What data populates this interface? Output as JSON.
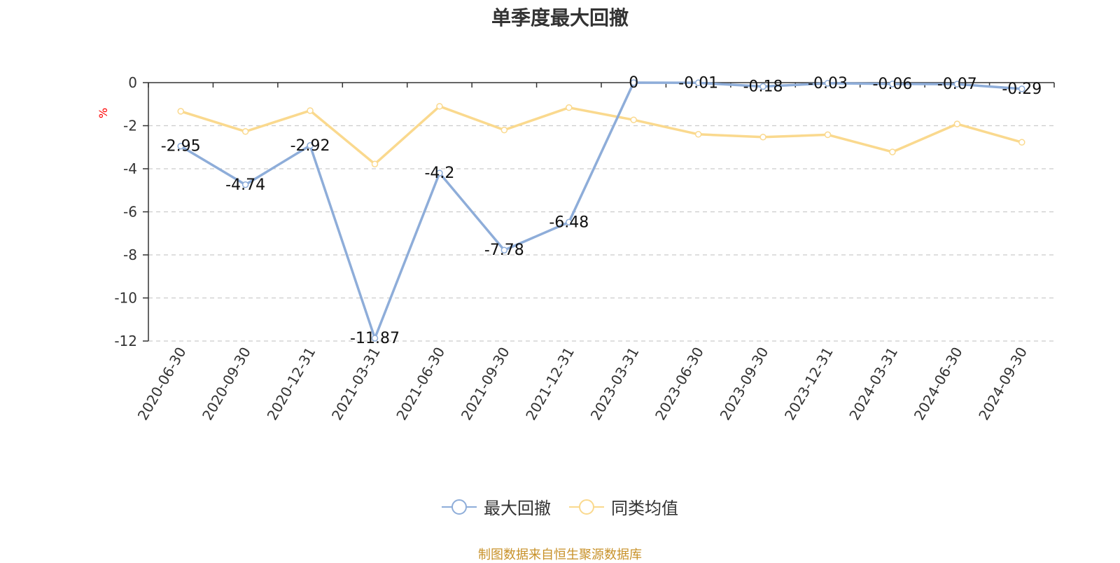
{
  "chart_data": {
    "type": "line",
    "title": "单季度最大回撤",
    "ylabel": "%",
    "ylim": [
      -12,
      0
    ],
    "yticks": [
      0,
      -2,
      -4,
      -6,
      -8,
      -10,
      -12
    ],
    "grid": true,
    "legend_position": "bottom",
    "categories": [
      "2020-06-30",
      "2020-09-30",
      "2020-12-31",
      "2021-03-31",
      "2021-06-30",
      "2021-09-30",
      "2021-12-31",
      "2023-03-31",
      "2023-06-30",
      "2023-09-30",
      "2023-12-31",
      "2024-03-31",
      "2024-06-30",
      "2024-09-30"
    ],
    "series": [
      {
        "name": "最大回撤",
        "color": "#8eadd9",
        "values": [
          -2.95,
          -4.74,
          -2.92,
          -11.87,
          -4.2,
          -7.78,
          -6.48,
          0,
          -0.01,
          -0.18,
          -0.03,
          -0.06,
          -0.07,
          -0.29
        ],
        "labels": [
          "-2.95",
          "-4.74",
          "-2.92",
          "-11.87",
          "-4.2",
          "-7.78",
          "-6.48",
          "0",
          "-0.01",
          "-0.18",
          "-0.03",
          "-0.06",
          "-0.07",
          "-0.29"
        ]
      },
      {
        "name": "同类均值",
        "color": "#fad98e",
        "values": [
          -1.33,
          -2.27,
          -1.3,
          -3.78,
          -1.1,
          -2.2,
          -1.16,
          -1.73,
          -2.4,
          -2.53,
          -2.42,
          -3.22,
          -1.92,
          -2.77
        ]
      }
    ]
  },
  "footer": {
    "source": "制图数据来自恒生聚源数据库"
  }
}
